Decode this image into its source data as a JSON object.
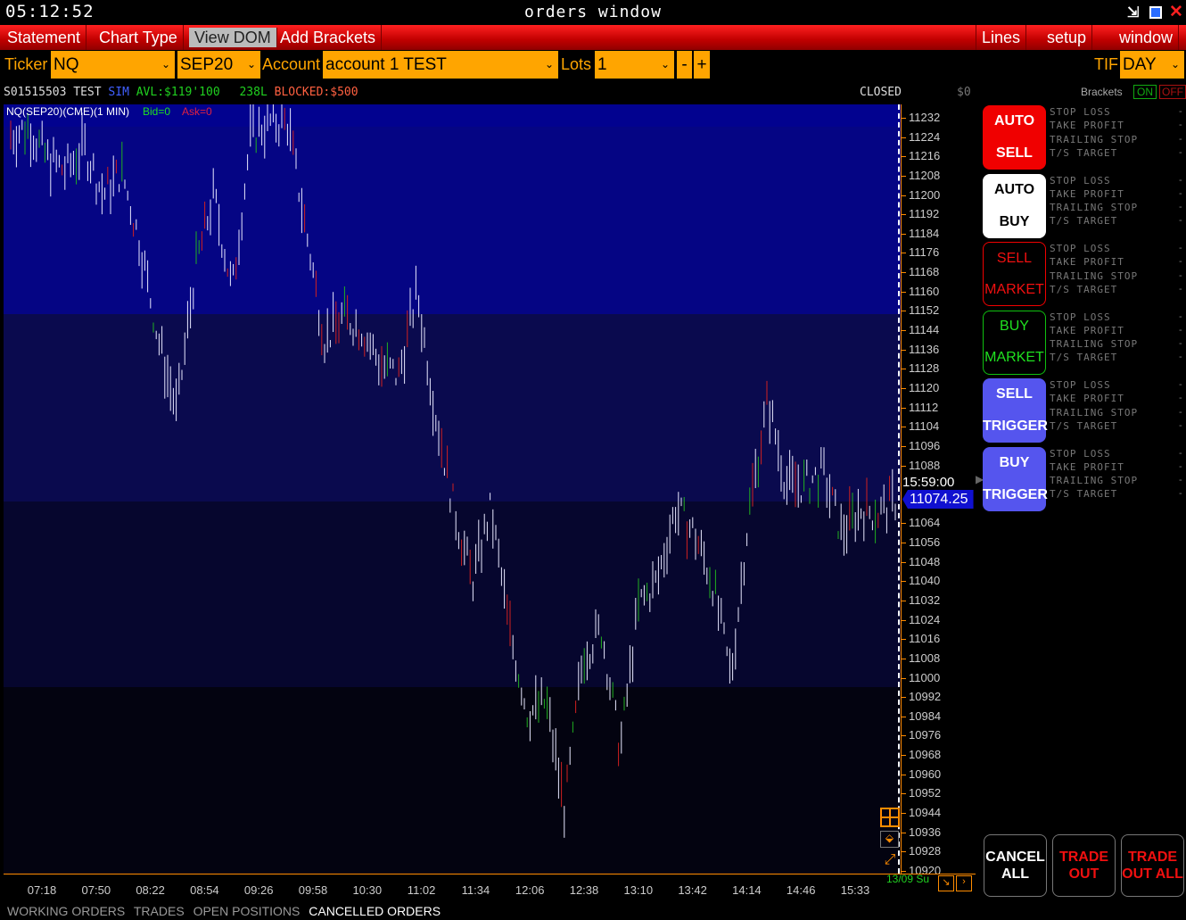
{
  "titlebar": {
    "clock": "05:12:52",
    "title": "orders window",
    "min_icon": "minimize-icon",
    "max_icon": "maximize-icon",
    "close_icon": "close-icon"
  },
  "menu": {
    "left": [
      "Statement",
      "Chart Type",
      "View DOM",
      "Add Brackets"
    ],
    "right": [
      "Lines",
      "setup",
      "window"
    ],
    "active": "View DOM"
  },
  "toolbar": {
    "ticker_label": "Ticker",
    "ticker": "NQ",
    "contract": "SEP20",
    "account_label": "Account",
    "account": "account 1 TEST",
    "lots_label": "Lots",
    "lots": "1",
    "minus": "-",
    "plus": "+",
    "tif_label": "TIF",
    "tif": "DAY"
  },
  "account_line": {
    "id": "S01515503",
    "type": "TEST",
    "mode": "SIM",
    "available": "AVL:$119'100",
    "leverage": "238L",
    "blocked": "BLOCKED:$500",
    "closed_pnl_label": "CLOSED P&L:",
    "closed_pnl": "$0"
  },
  "brackets": {
    "label": "Brackets",
    "on": "ON",
    "off": "OFF"
  },
  "chart_legend": {
    "symbol": "NQ(SEP20)(CME)(1 MIN)",
    "bid": "Bid=0",
    "ask": "Ask=0"
  },
  "chart_data": {
    "type": "candlestick",
    "price_ticks": [
      11232,
      11224,
      11216,
      11208,
      11200,
      11192,
      11184,
      11176,
      11168,
      11160,
      11152,
      11144,
      11136,
      11128,
      11120,
      11112,
      11104,
      11096,
      11088,
      11064,
      11056,
      11048,
      11040,
      11032,
      11024,
      11016,
      11008,
      11000,
      10992,
      10984,
      10976,
      10968,
      10960,
      10952,
      10944,
      10936,
      10928,
      10920
    ],
    "time_ticks": [
      "07:18",
      "07:50",
      "08:22",
      "08:54",
      "09:26",
      "09:58",
      "10:30",
      "11:02",
      "11:34",
      "12:06",
      "12:38",
      "13:10",
      "13:42",
      "14:14",
      "14:46",
      "15:33"
    ],
    "approx_price_path": [
      11225,
      11228,
      11215,
      11210,
      11220,
      11200,
      11210,
      11180,
      11140,
      11110,
      11170,
      11200,
      11160,
      11225,
      11230,
      11230,
      11185,
      11140,
      11150,
      11145,
      11130,
      11125,
      11160,
      11110,
      11070,
      11040,
      11070,
      11020,
      10985,
      10990,
      10945,
      11010,
      11020,
      10970,
      11030,
      11040,
      11070,
      11060,
      11040,
      11000,
      11070,
      11115,
      11080,
      11080,
      11085,
      11060,
      11070,
      11068,
      11074.25
    ],
    "ylim": [
      10918,
      11238
    ],
    "crosshair_time": "15:59:00",
    "last_price": "11074.25",
    "date_label": "13/09 Su"
  },
  "order_buttons": [
    {
      "top": "AUTO",
      "bottom": "SELL",
      "style": "red"
    },
    {
      "top": "AUTO",
      "bottom": "BUY",
      "style": "white"
    },
    {
      "top": "SELL",
      "bottom": "MARKET",
      "style": "outline-red"
    },
    {
      "top": "BUY",
      "bottom": "MARKET",
      "style": "outline-green"
    },
    {
      "top": "SELL",
      "bottom": "TRIGGER",
      "style": "blue"
    },
    {
      "top": "BUY",
      "bottom": "TRIGGER",
      "style": "blue"
    }
  ],
  "bracket_fields": [
    "STOP LOSS",
    "TAKE PROFIT",
    "TRAILING STOP",
    "T/S TARGET"
  ],
  "bracket_value": "-",
  "bottom_buttons": {
    "cancel_all": "CANCEL ALL",
    "trade_out": "TRADE OUT",
    "trade_out_all": "TRADE OUT ALL"
  },
  "bottom_tabs": [
    "WORKING ORDERS",
    "TRADES",
    "OPEN POSITIONS",
    "CANCELLED ORDERS"
  ]
}
